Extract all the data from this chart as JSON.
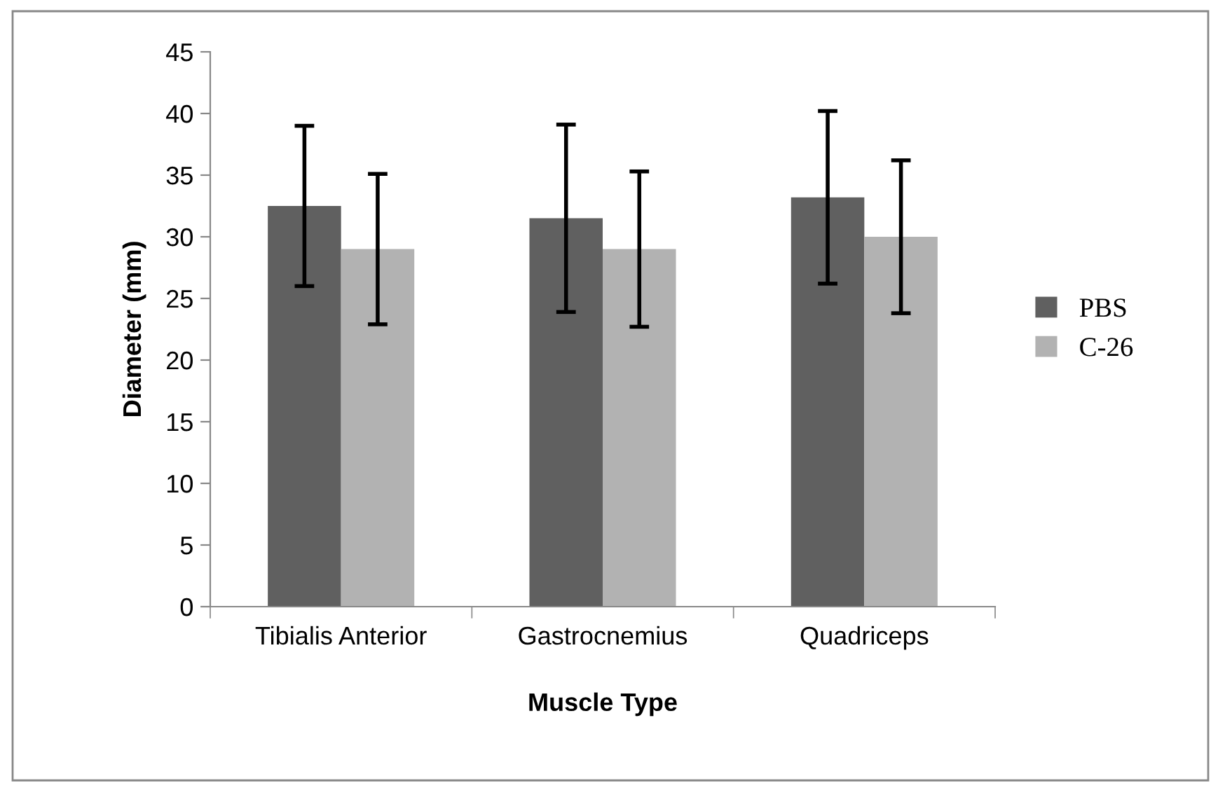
{
  "chart_data": {
    "type": "bar",
    "xlabel": "Muscle Type",
    "ylabel": "Diameter (mm)",
    "categories": [
      "Tibialis Anterior",
      "Gastrocnemius",
      "Quadriceps"
    ],
    "series": [
      {
        "name": "PBS",
        "color": "#606060",
        "values": [
          32.5,
          31.5,
          33.2
        ],
        "errors": [
          6.5,
          7.6,
          7.0
        ]
      },
      {
        "name": "C-26",
        "color": "#b2b2b2",
        "values": [
          29.0,
          29.0,
          30.0
        ],
        "errors": [
          6.1,
          6.3,
          6.2
        ]
      }
    ],
    "ylim": [
      0,
      45
    ],
    "yticks": [
      0,
      5,
      10,
      15,
      20,
      25,
      30,
      35,
      40,
      45
    ],
    "grid": false,
    "legend": "right"
  }
}
